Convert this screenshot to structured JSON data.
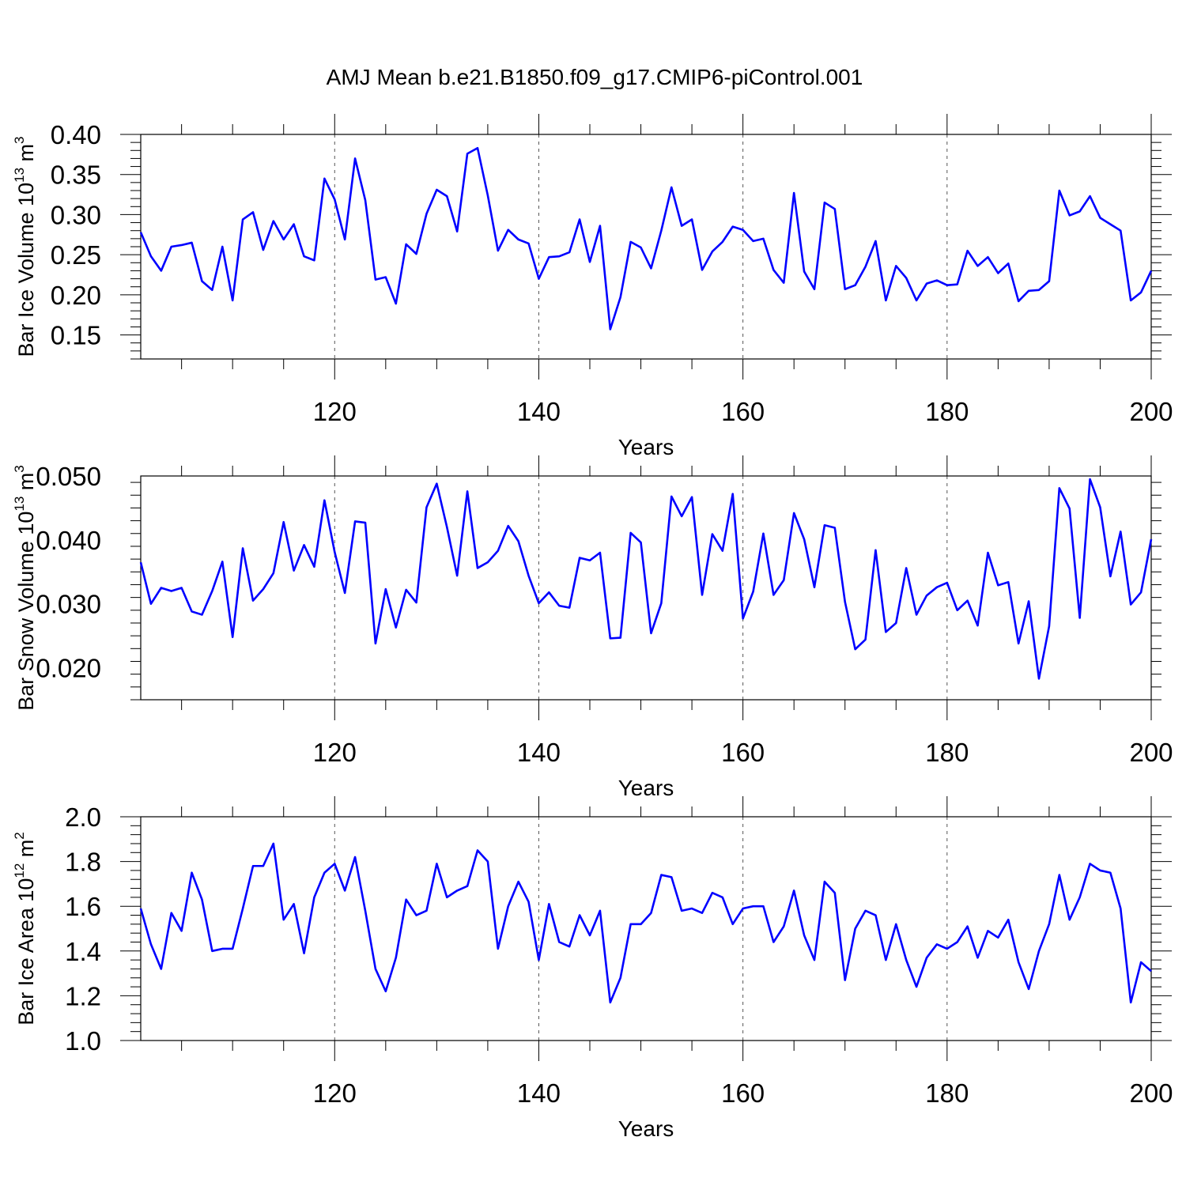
{
  "title": "AMJ Mean b.e21.B1850.f09_g17.CMIP6-piControl.001",
  "line_color": "#0000ff",
  "chart_data": [
    {
      "type": "line",
      "title": "",
      "xlabel": "Years",
      "ylabel_main": "Bar Ice Volume 10",
      "ylabel_exp1": "13",
      "ylabel_mid": " m",
      "ylabel_exp2": "3",
      "xlim": [
        101,
        200
      ],
      "ylim": [
        0.12,
        0.4
      ],
      "xticks": [
        "120",
        "140",
        "160",
        "180",
        "200"
      ],
      "yticks": [
        "0.40",
        "0.35",
        "0.30",
        "0.25",
        "0.20",
        "0.15"
      ],
      "grid_x_dashed": [
        120,
        140,
        160,
        180
      ],
      "x_start": 101,
      "values": [
        0.278,
        0.248,
        0.23,
        0.26,
        0.262,
        0.265,
        0.217,
        0.206,
        0.26,
        0.193,
        0.294,
        0.303,
        0.256,
        0.292,
        0.269,
        0.288,
        0.248,
        0.243,
        0.345,
        0.319,
        0.269,
        0.37,
        0.318,
        0.219,
        0.222,
        0.189,
        0.263,
        0.251,
        0.301,
        0.331,
        0.323,
        0.279,
        0.376,
        0.383,
        0.324,
        0.255,
        0.281,
        0.269,
        0.264,
        0.22,
        0.247,
        0.248,
        0.253,
        0.294,
        0.241,
        0.286,
        0.157,
        0.197,
        0.266,
        0.259,
        0.233,
        0.28,
        0.334,
        0.286,
        0.294,
        0.231,
        0.254,
        0.266,
        0.285,
        0.281,
        0.267,
        0.27,
        0.231,
        0.215,
        0.327,
        0.229,
        0.207,
        0.315,
        0.307,
        0.207,
        0.212,
        0.235,
        0.267,
        0.193,
        0.236,
        0.221,
        0.193,
        0.214,
        0.218,
        0.212,
        0.213,
        0.255,
        0.236,
        0.247,
        0.227,
        0.239,
        0.192,
        0.205,
        0.206,
        0.217,
        0.33,
        0.299,
        0.304,
        0.323,
        0.296,
        0.288,
        0.28,
        0.193,
        0.203,
        0.23
      ]
    },
    {
      "type": "line",
      "title": "",
      "xlabel": "Years",
      "ylabel_main": "Bar Snow Volume 10",
      "ylabel_exp1": "13",
      "ylabel_mid": " m",
      "ylabel_exp2": "3",
      "xlim": [
        101,
        200
      ],
      "ylim": [
        0.015,
        0.05
      ],
      "xticks": [
        "120",
        "140",
        "160",
        "180",
        "200"
      ],
      "yticks": [
        "0.050",
        "0.040",
        "0.030",
        "0.020"
      ],
      "grid_x_dashed": [
        120,
        140,
        160,
        180
      ],
      "x_start": 101,
      "values": [
        0.0365,
        0.03,
        0.0325,
        0.032,
        0.0325,
        0.0288,
        0.0283,
        0.032,
        0.0366,
        0.0248,
        0.0387,
        0.0305,
        0.0323,
        0.0348,
        0.0428,
        0.0352,
        0.0392,
        0.0358,
        0.0462,
        0.0381,
        0.0317,
        0.0429,
        0.0427,
        0.0238,
        0.0323,
        0.0263,
        0.0322,
        0.0302,
        0.0451,
        0.0488,
        0.042,
        0.0344,
        0.0476,
        0.0356,
        0.0365,
        0.0383,
        0.0422,
        0.0398,
        0.0344,
        0.0301,
        0.0318,
        0.0297,
        0.0294,
        0.0372,
        0.0368,
        0.038,
        0.0246,
        0.0247,
        0.0411,
        0.0396,
        0.0254,
        0.0301,
        0.0468,
        0.0437,
        0.0467,
        0.0314,
        0.0409,
        0.0383,
        0.0472,
        0.0277,
        0.0319,
        0.041,
        0.0314,
        0.0337,
        0.0442,
        0.0401,
        0.0326,
        0.0423,
        0.0419,
        0.0303,
        0.0229,
        0.0244,
        0.0384,
        0.0256,
        0.027,
        0.0356,
        0.0283,
        0.0313,
        0.0326,
        0.0333,
        0.029,
        0.0305,
        0.0266,
        0.038,
        0.0329,
        0.0334,
        0.0238,
        0.0304,
        0.0183,
        0.0265,
        0.0481,
        0.0449,
        0.0278,
        0.0495,
        0.0451,
        0.0343,
        0.0413,
        0.0299,
        0.0318,
        0.0401
      ]
    },
    {
      "type": "line",
      "title": "",
      "xlabel": "Years",
      "ylabel_main": "Bar Ice Area 10",
      "ylabel_exp1": "12",
      "ylabel_mid": " m",
      "ylabel_exp2": "2",
      "xlim": [
        101,
        200
      ],
      "ylim": [
        1.0,
        2.0
      ],
      "xticks": [
        "120",
        "140",
        "160",
        "180",
        "200"
      ],
      "yticks": [
        "2.0",
        "1.8",
        "1.6",
        "1.4",
        "1.2",
        "1.0"
      ],
      "grid_x_dashed": [
        120,
        140,
        160,
        180
      ],
      "x_start": 101,
      "values": [
        1.59,
        1.43,
        1.32,
        1.57,
        1.49,
        1.75,
        1.63,
        1.4,
        1.41,
        1.41,
        1.59,
        1.78,
        1.78,
        1.88,
        1.54,
        1.61,
        1.39,
        1.64,
        1.75,
        1.79,
        1.67,
        1.82,
        1.58,
        1.32,
        1.22,
        1.37,
        1.63,
        1.56,
        1.58,
        1.79,
        1.64,
        1.67,
        1.69,
        1.85,
        1.8,
        1.41,
        1.6,
        1.71,
        1.62,
        1.36,
        1.61,
        1.44,
        1.42,
        1.56,
        1.47,
        1.58,
        1.17,
        1.28,
        1.52,
        1.52,
        1.57,
        1.74,
        1.73,
        1.58,
        1.59,
        1.57,
        1.66,
        1.64,
        1.52,
        1.59,
        1.6,
        1.6,
        1.44,
        1.51,
        1.67,
        1.47,
        1.36,
        1.71,
        1.66,
        1.27,
        1.5,
        1.58,
        1.56,
        1.36,
        1.52,
        1.36,
        1.24,
        1.37,
        1.43,
        1.41,
        1.44,
        1.51,
        1.37,
        1.49,
        1.46,
        1.54,
        1.35,
        1.23,
        1.4,
        1.52,
        1.74,
        1.54,
        1.64,
        1.79,
        1.76,
        1.75,
        1.59,
        1.17,
        1.35,
        1.31
      ]
    }
  ]
}
